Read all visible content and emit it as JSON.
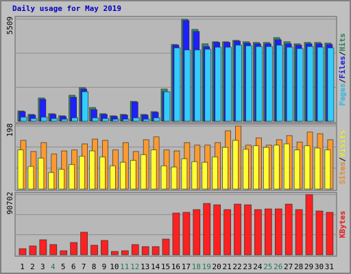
{
  "chart_data": [
    {
      "type": "bar",
      "title": "Daily usage for May 2019",
      "categories": [
        "1",
        "2",
        "3",
        "4",
        "5",
        "6",
        "7",
        "8",
        "9",
        "10",
        "11",
        "12",
        "13",
        "14",
        "15",
        "16",
        "17",
        "18",
        "19",
        "20",
        "21",
        "22",
        "23",
        "24",
        "25",
        "26",
        "27",
        "28",
        "29",
        "30",
        "31"
      ],
      "category_colors": [
        "#000000",
        "#000000",
        "#000000",
        "#207a50",
        "#000000",
        "#000000",
        "#000000",
        "#000000",
        "#000000",
        "#000000",
        "#207a50",
        "#207a50",
        "#000000",
        "#000000",
        "#000000",
        "#000000",
        "#000000",
        "#207a50",
        "#207a50",
        "#000000",
        "#000000",
        "#000000",
        "#000000",
        "#000000",
        "#207a50",
        "#207a50",
        "#000000",
        "#000000",
        "#000000",
        "#000000",
        "#000000"
      ],
      "series": [
        {
          "name": "Hits",
          "color": "#2f8f6a",
          "values": [
            555,
            370,
            1258,
            407,
            296,
            1406,
            1813,
            740,
            407,
            296,
            370,
            1073,
            370,
            518,
            1739,
            4144,
            5509,
            4958,
            4181,
            4292,
            4292,
            4366,
            4292,
            4255,
            4255,
            4514,
            4292,
            4181,
            4255,
            4255,
            4218
          ]
        },
        {
          "name": "Files",
          "color": "#1f1fff",
          "values": [
            518,
            333,
            1184,
            370,
            259,
            1295,
            1739,
            629,
            370,
            259,
            333,
            1036,
            333,
            481,
            1591,
            4107,
            5439,
            4847,
            4033,
            4255,
            4255,
            4329,
            4218,
            4181,
            4181,
            4403,
            4181,
            4107,
            4181,
            4181,
            4144
          ]
        },
        {
          "name": "Pages",
          "color": "#33ccff",
          "values": [
            222,
            148,
            222,
            148,
            111,
            185,
            1591,
            185,
            148,
            111,
            111,
            185,
            111,
            185,
            1591,
            3959,
            3848,
            3848,
            3885,
            3996,
            3996,
            4107,
            4070,
            4033,
            4033,
            4107,
            3996,
            3922,
            4033,
            3996,
            3959
          ]
        }
      ],
      "ylim": [
        0,
        5509
      ],
      "yticks": [
        5509
      ],
      "legend_separator": "/",
      "reverse_legend": true,
      "stack_direction": "right"
    },
    {
      "type": "bar",
      "series": [
        {
          "name": "Sites",
          "color": "#ff9a2e",
          "values": [
            153,
            118,
            146,
            110,
            120,
            123,
            142,
            157,
            153,
            123,
            146,
            118,
            155,
            164,
            123,
            120,
            146,
            138,
            138,
            146,
            183,
            198,
            138,
            161,
            138,
            155,
            168,
            148,
            179,
            174,
            155
          ]
        },
        {
          "name": "Visits",
          "color": "#ffff33",
          "values": [
            123,
            71,
            97,
            52,
            62,
            77,
            103,
            120,
            101,
            73,
            84,
            90,
            108,
            123,
            73,
            69,
            95,
            86,
            84,
            101,
            131,
            153,
            125,
            136,
            131,
            138,
            142,
            123,
            136,
            129,
            123
          ]
        }
      ],
      "ylim": [
        0,
        198
      ],
      "yticks": [
        198
      ],
      "legend_separator": "/",
      "reverse_legend": false,
      "stack_direction": "left"
    },
    {
      "type": "bar",
      "series": [
        {
          "name": "KBytes",
          "color": "#ff2020",
          "values": [
            9279,
            13403,
            22682,
            15465,
            6186,
            18558,
            34023,
            14434,
            21651,
            5155,
            6186,
            15465,
            12372,
            12372,
            23713,
            62891,
            63922,
            68046,
            77325,
            75263,
            68046,
            76294,
            75263,
            68046,
            69077,
            69077,
            76294,
            68046,
            90702,
            65984,
            63922
          ]
        }
      ],
      "ylim": [
        0,
        90702
      ],
      "yticks": [
        90702
      ],
      "reverse_legend": false,
      "stack_direction": "right"
    }
  ]
}
